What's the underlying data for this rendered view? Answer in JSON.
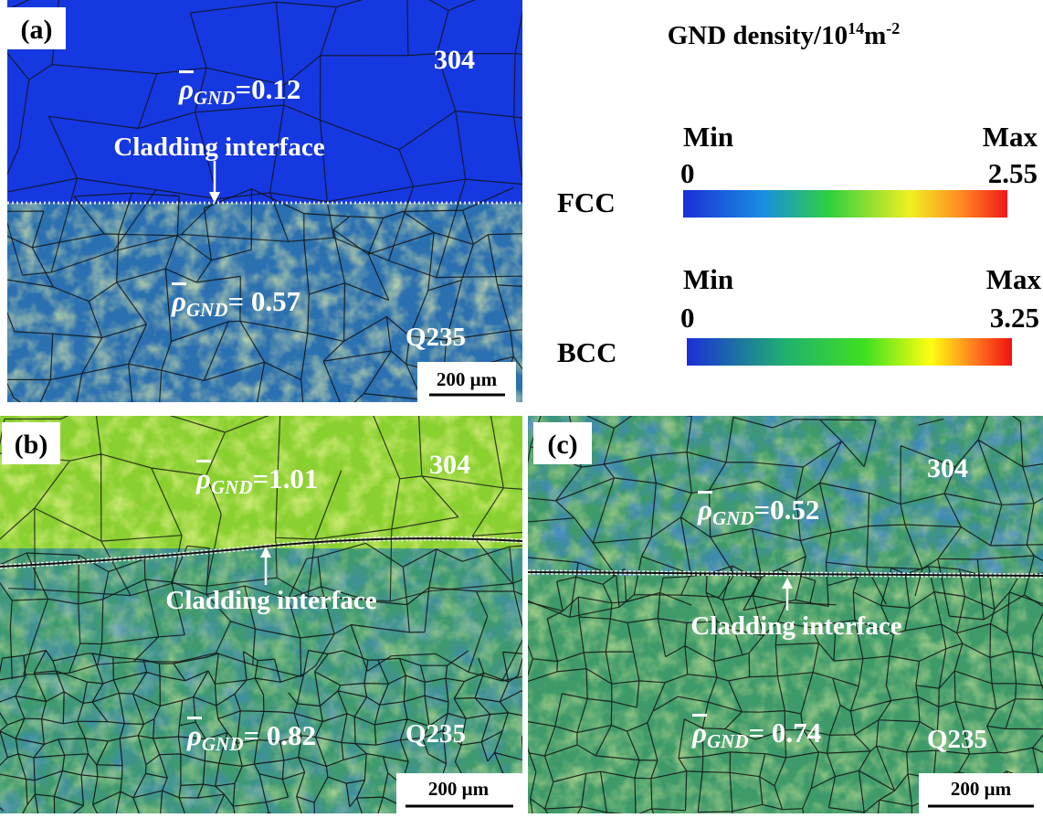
{
  "legend": {
    "title": "GND density/10",
    "title_exp": "14",
    "title_unit": "m",
    "title_unit_exp": "-2",
    "scales": [
      {
        "phase": "FCC",
        "min_label": "Min",
        "max_label": "Max",
        "min": "0",
        "max": "2.55"
      },
      {
        "phase": "BCC",
        "min_label": "Min",
        "max_label": "Max",
        "min": "0",
        "max": "3.25"
      }
    ]
  },
  "symbol": {
    "letter": "ρ",
    "subscript": "GND"
  },
  "panels": [
    {
      "label": "(a)",
      "top_material": "304",
      "bottom_material": "Q235",
      "top_gnd": "=0.12",
      "bottom_gnd": "= 0.57",
      "interface": "Cladding interface",
      "scale_bar": "200 μm"
    },
    {
      "label": "(b)",
      "top_material": "304",
      "bottom_material": "Q235",
      "top_gnd": "=1.01",
      "bottom_gnd": "= 0.82",
      "interface": "Cladding interface",
      "scale_bar": "200 μm"
    },
    {
      "label": "(c)",
      "top_material": "304",
      "bottom_material": "Q235",
      "top_gnd": "=0.52",
      "bottom_gnd": "= 0.74",
      "interface": "Cladding interface",
      "scale_bar": "200 μm"
    }
  ]
}
